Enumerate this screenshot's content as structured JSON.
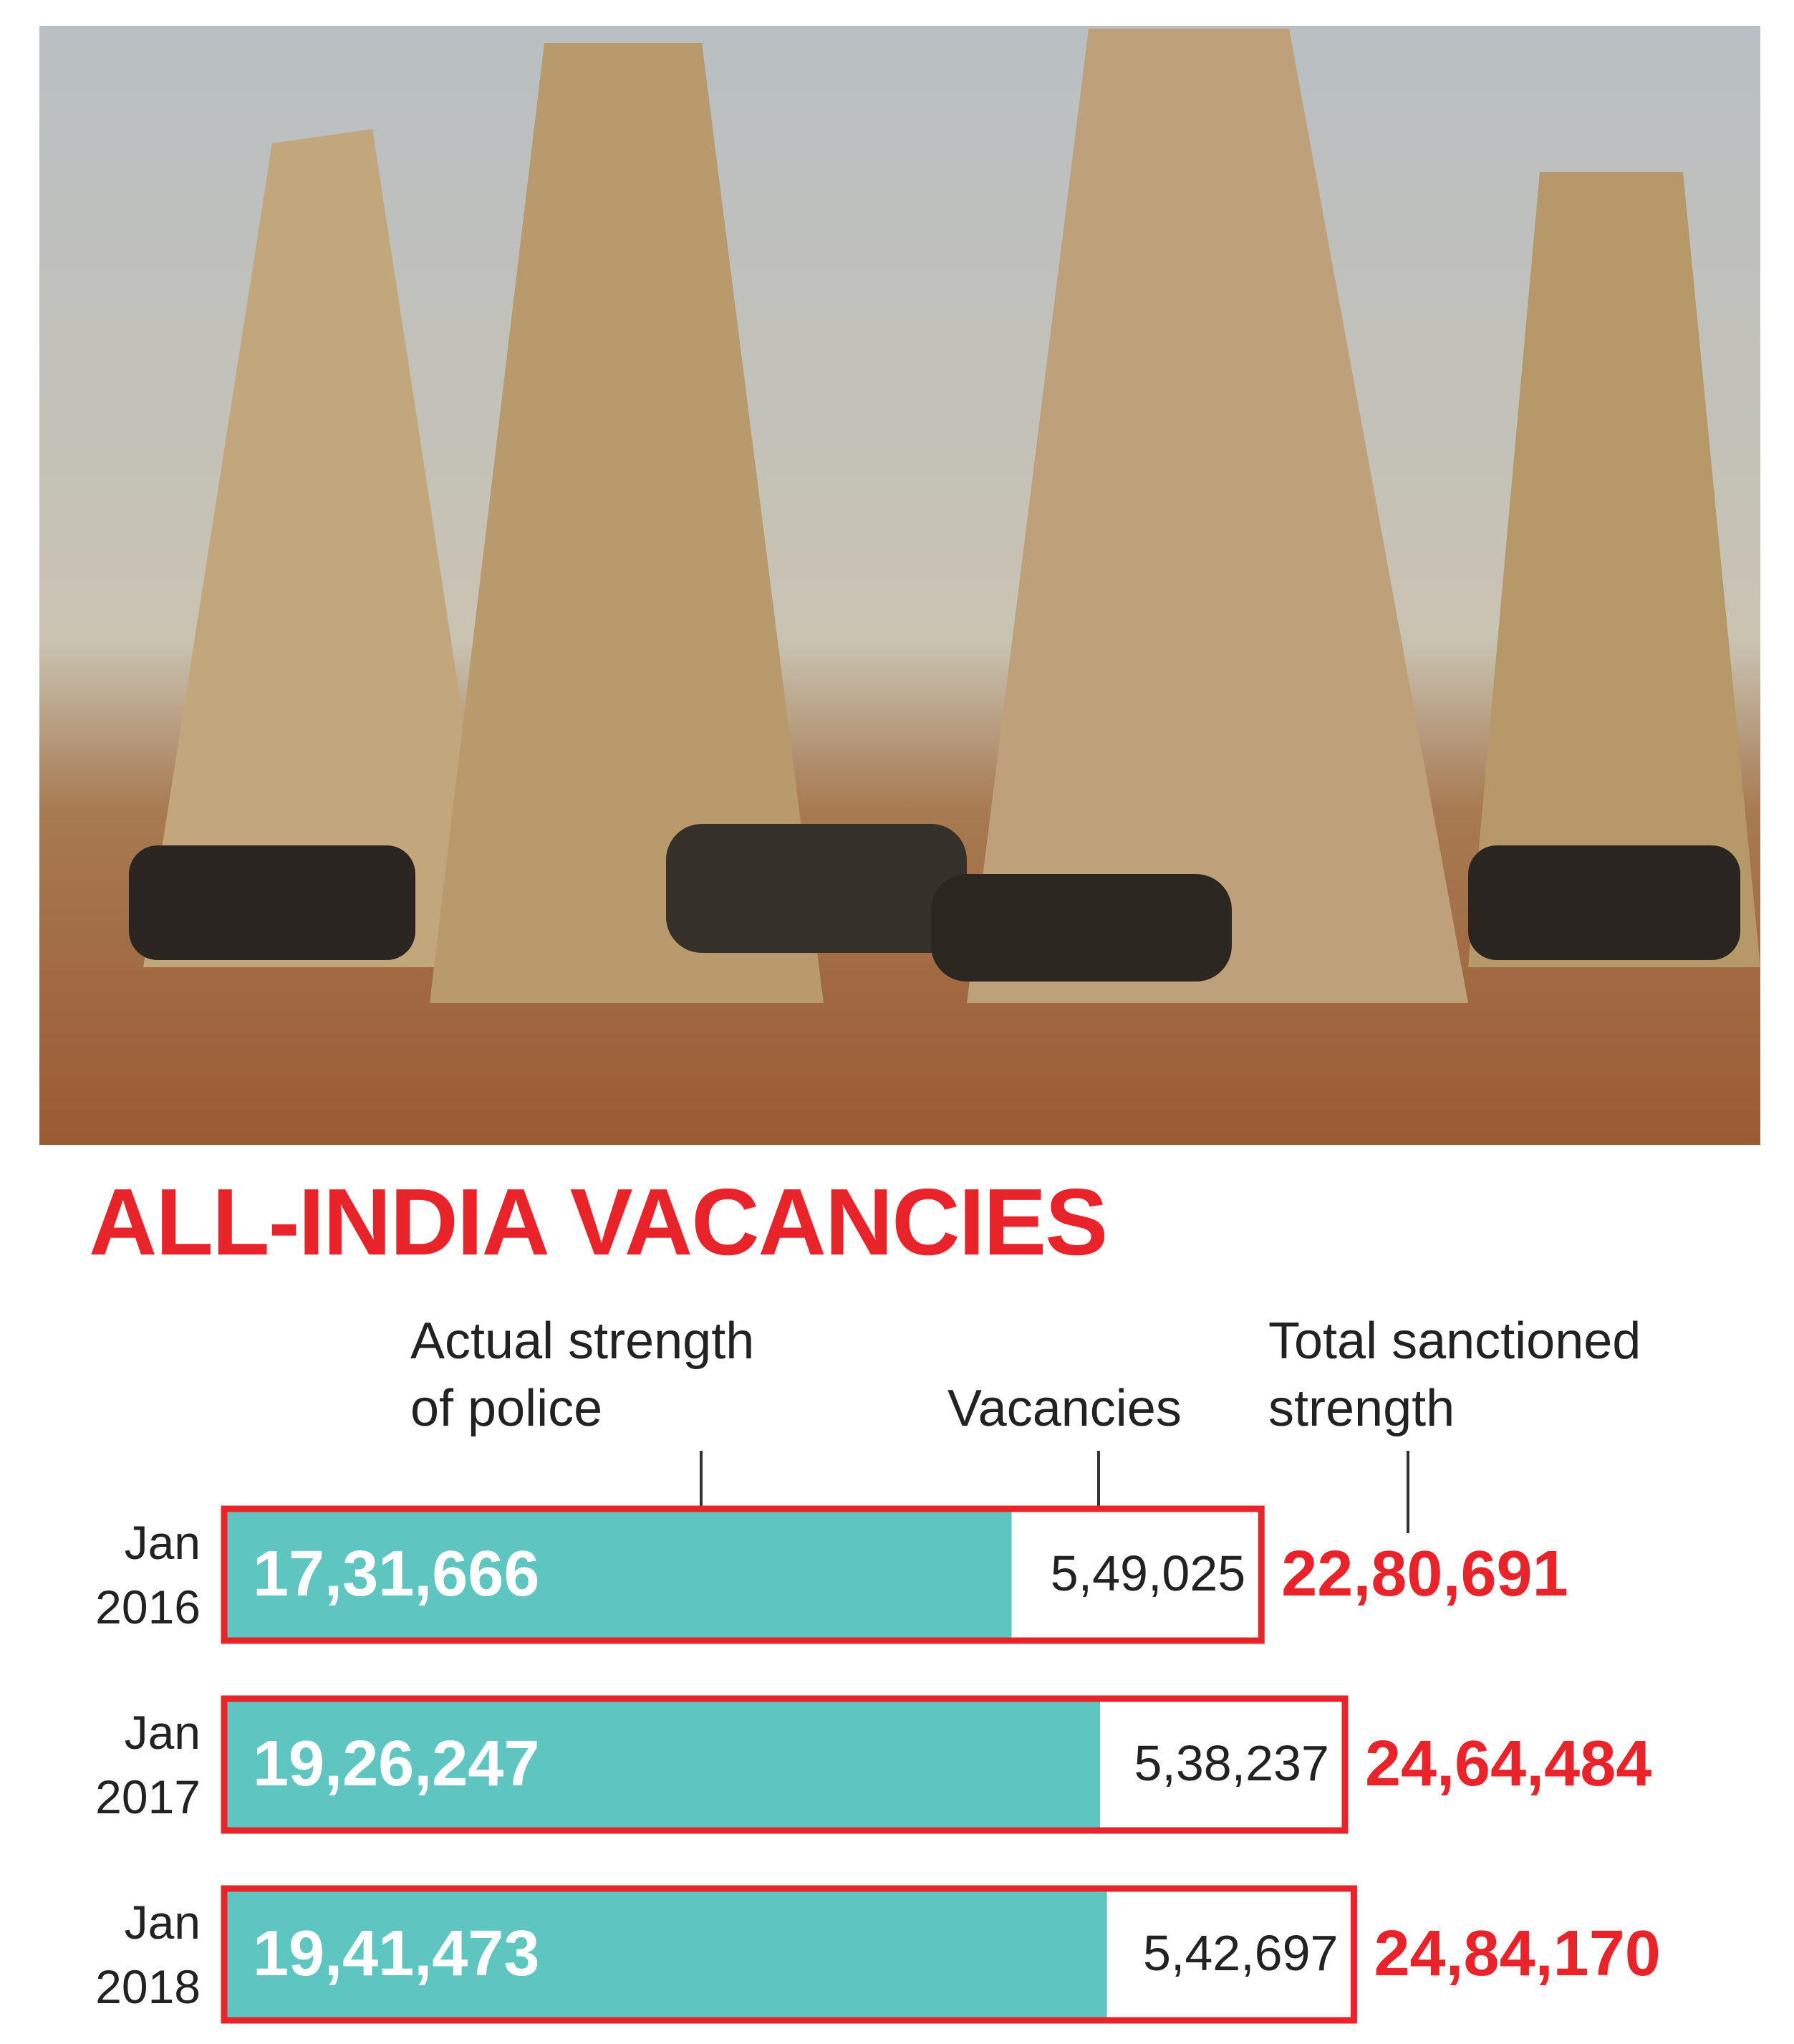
{
  "chart_data": {
    "type": "stacked-bar",
    "title": "ALL-INDIA VACANCIES",
    "categories": [
      "Jan 2016",
      "Jan 2017",
      "Jan 2018"
    ],
    "series": [
      {
        "name": "Actual strength of police",
        "color": "#5ec5c1",
        "values": [
          1731666,
          1926247,
          1941473
        ],
        "value_labels": [
          "17,31,666",
          "19,26,247",
          "19,41,473"
        ]
      },
      {
        "name": "Vacancies",
        "color": "#ffffff",
        "values": [
          549025,
          538237,
          542697
        ],
        "value_labels": [
          "5,49,025",
          "5,38,237",
          "5,42,697"
        ]
      }
    ],
    "total": {
      "name": "Total sanctioned strength",
      "color": "#e8232a",
      "values": [
        2280691,
        2464484,
        2484170
      ],
      "value_labels": [
        "22,80,691",
        "24,64,484",
        "24,84,170"
      ]
    }
  }
}
